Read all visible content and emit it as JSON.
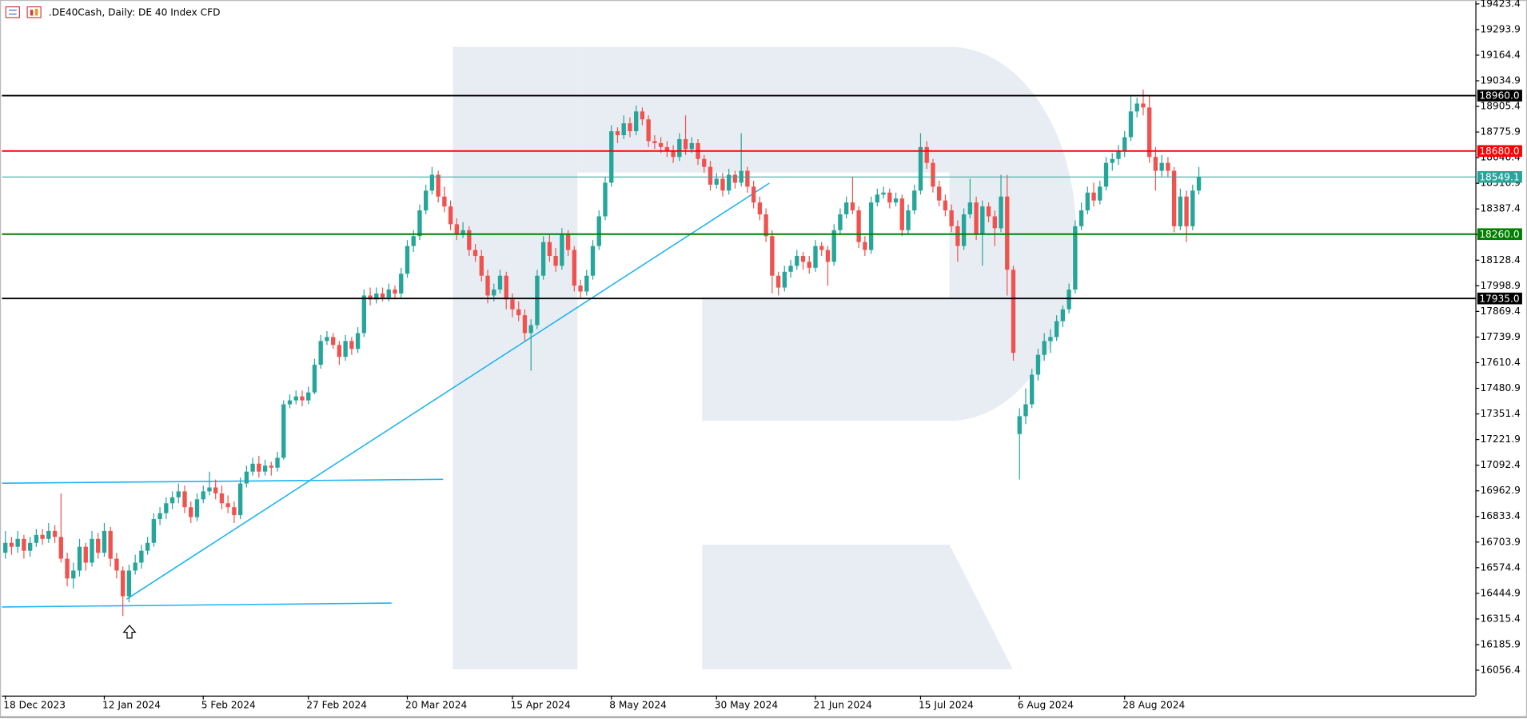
{
  "chart_data": {
    "type": "candlestick",
    "title": ".DE40Cash, Daily:  DE 40 Index CFD",
    "up_color": "#26a69a",
    "down_color": "#ef5350",
    "ylim": [
      15928.1,
      19443.1
    ],
    "yticks": [
      19423.4,
      19293.9,
      19164.4,
      19034.9,
      18905.4,
      18775.9,
      18646.4,
      18516.9,
      18387.4,
      18257.9,
      18128.4,
      17998.9,
      17869.4,
      17739.9,
      17610.4,
      17480.9,
      17351.4,
      17221.9,
      17092.4,
      16962.9,
      16833.4,
      16703.9,
      16574.4,
      16444.9,
      16315.4,
      16185.9,
      16056.4
    ],
    "levels": [
      {
        "value": 18960,
        "label": "18960.0",
        "color": "#000000"
      },
      {
        "value": 18680,
        "label": "18680.0",
        "color": "#ff0000"
      },
      {
        "value": 18549.1,
        "color": "#26a69a"
      },
      {
        "value": 18260,
        "label": "18260.0",
        "color": "#008000"
      },
      {
        "value": 17935,
        "label": "17935.0",
        "color": "#000000"
      }
    ],
    "categories": [
      "18 Dec 2023",
      null,
      null,
      null,
      null,
      null,
      null,
      null,
      null,
      null,
      null,
      null,
      null,
      null,
      null,
      null,
      "12 Jan 2024",
      null,
      null,
      null,
      null,
      null,
      null,
      null,
      null,
      null,
      null,
      null,
      null,
      null,
      null,
      null,
      "5 Feb 2024",
      null,
      null,
      null,
      null,
      null,
      null,
      null,
      null,
      null,
      null,
      null,
      null,
      null,
      null,
      null,
      null,
      "27 Feb 2024",
      null,
      null,
      null,
      null,
      null,
      null,
      null,
      null,
      null,
      null,
      null,
      null,
      null,
      null,
      null,
      "20 Mar 2024",
      null,
      null,
      null,
      null,
      null,
      null,
      null,
      null,
      null,
      null,
      null,
      null,
      null,
      null,
      null,
      null,
      "15 Apr 2024",
      null,
      null,
      null,
      null,
      null,
      null,
      null,
      null,
      null,
      null,
      null,
      null,
      null,
      null,
      null,
      "8 May 2024",
      null,
      null,
      null,
      null,
      null,
      null,
      null,
      null,
      null,
      null,
      null,
      null,
      null,
      null,
      null,
      null,
      "30 May 2024",
      null,
      null,
      null,
      null,
      null,
      null,
      null,
      null,
      null,
      null,
      null,
      null,
      null,
      null,
      null,
      "21 Jun 2024",
      null,
      null,
      null,
      null,
      null,
      null,
      null,
      null,
      null,
      null,
      null,
      null,
      null,
      null,
      null,
      null,
      "15 Jul 2024",
      null,
      null,
      null,
      null,
      null,
      null,
      null,
      null,
      null,
      null,
      null,
      null,
      null,
      null,
      null,
      "6 Aug 2024",
      null,
      null,
      null,
      null,
      null,
      null,
      null,
      null,
      null,
      null,
      null,
      null,
      null,
      null,
      null,
      null,
      "28 Aug 2024",
      null,
      null,
      null,
      null,
      null,
      null,
      null,
      null,
      null,
      null,
      null,
      null
    ],
    "ohlc": [
      [
        16650,
        16760,
        16620,
        16700
      ],
      [
        16700,
        16730,
        16640,
        16680
      ],
      [
        16680,
        16760,
        16650,
        16720
      ],
      [
        16720,
        16740,
        16620,
        16660
      ],
      [
        16660,
        16730,
        16630,
        16700
      ],
      [
        16700,
        16770,
        16680,
        16740
      ],
      [
        16740,
        16770,
        16690,
        16720
      ],
      [
        16720,
        16800,
        16700,
        16760
      ],
      [
        16760,
        16790,
        16700,
        16730
      ],
      [
        16730,
        16950,
        16600,
        16620
      ],
      [
        16620,
        16650,
        16480,
        16520
      ],
      [
        16520,
        16600,
        16470,
        16560
      ],
      [
        16560,
        16720,
        16530,
        16680
      ],
      [
        16680,
        16700,
        16560,
        16600
      ],
      [
        16600,
        16760,
        16580,
        16720
      ],
      [
        16720,
        16750,
        16620,
        16650
      ],
      [
        16650,
        16800,
        16630,
        16760
      ],
      [
        16760,
        16780,
        16580,
        16620
      ],
      [
        16620,
        16650,
        16520,
        16560
      ],
      [
        16560,
        16580,
        16330,
        16430
      ],
      [
        16430,
        16590,
        16400,
        16560
      ],
      [
        16560,
        16640,
        16540,
        16600
      ],
      [
        16600,
        16690,
        16570,
        16660
      ],
      [
        16660,
        16730,
        16640,
        16700
      ],
      [
        16700,
        16850,
        16680,
        16820
      ],
      [
        16820,
        16880,
        16790,
        16850
      ],
      [
        16850,
        16930,
        16820,
        16900
      ],
      [
        16900,
        16960,
        16870,
        16930
      ],
      [
        16930,
        17000,
        16900,
        16960
      ],
      [
        16960,
        16990,
        16850,
        16880
      ],
      [
        16880,
        16910,
        16800,
        16830
      ],
      [
        16830,
        16950,
        16810,
        16920
      ],
      [
        16920,
        16990,
        16900,
        16960
      ],
      [
        16960,
        17060,
        16940,
        16980
      ],
      [
        16980,
        17020,
        16920,
        16950
      ],
      [
        16950,
        16990,
        16870,
        16900
      ],
      [
        16900,
        16940,
        16850,
        16880
      ],
      [
        16880,
        16910,
        16800,
        16840
      ],
      [
        16840,
        17030,
        16820,
        17000
      ],
      [
        17000,
        17090,
        16980,
        17060
      ],
      [
        17060,
        17130,
        17040,
        17100
      ],
      [
        17100,
        17140,
        17030,
        17060
      ],
      [
        17060,
        17120,
        17040,
        17090
      ],
      [
        17090,
        17110,
        17040,
        17080
      ],
      [
        17080,
        17160,
        17060,
        17130
      ],
      [
        17130,
        17420,
        17120,
        17400
      ],
      [
        17400,
        17450,
        17380,
        17420
      ],
      [
        17420,
        17470,
        17400,
        17440
      ],
      [
        17440,
        17470,
        17390,
        17420
      ],
      [
        17420,
        17490,
        17400,
        17460
      ],
      [
        17460,
        17630,
        17450,
        17600
      ],
      [
        17600,
        17750,
        17580,
        17720
      ],
      [
        17720,
        17770,
        17700,
        17740
      ],
      [
        17740,
        17760,
        17680,
        17700
      ],
      [
        17700,
        17720,
        17600,
        17640
      ],
      [
        17640,
        17750,
        17620,
        17720
      ],
      [
        17720,
        17740,
        17650,
        17680
      ],
      [
        17680,
        17790,
        17660,
        17760
      ],
      [
        17760,
        17980,
        17740,
        17950
      ],
      [
        17950,
        17990,
        17900,
        17930
      ],
      [
        17930,
        17990,
        17910,
        17960
      ],
      [
        17960,
        17990,
        17920,
        17940
      ],
      [
        17940,
        18010,
        17920,
        17980
      ],
      [
        17980,
        18000,
        17930,
        17960
      ],
      [
        17960,
        18090,
        17940,
        18060
      ],
      [
        18060,
        18230,
        18040,
        18200
      ],
      [
        18200,
        18280,
        18170,
        18250
      ],
      [
        18250,
        18410,
        18230,
        18380
      ],
      [
        18380,
        18510,
        18360,
        18480
      ],
      [
        18480,
        18600,
        18460,
        18560
      ],
      [
        18560,
        18580,
        18420,
        18450
      ],
      [
        18450,
        18500,
        18370,
        18400
      ],
      [
        18400,
        18430,
        18280,
        18310
      ],
      [
        18310,
        18340,
        18230,
        18260
      ],
      [
        18260,
        18320,
        18240,
        18280
      ],
      [
        18280,
        18300,
        18150,
        18180
      ],
      [
        18180,
        18210,
        18120,
        18150
      ],
      [
        18150,
        18180,
        18020,
        18050
      ],
      [
        18050,
        18080,
        17910,
        17950
      ],
      [
        17950,
        18010,
        17920,
        17980
      ],
      [
        17980,
        18080,
        17960,
        18050
      ],
      [
        18050,
        18070,
        17880,
        17930
      ],
      [
        17930,
        17960,
        17840,
        17880
      ],
      [
        17880,
        17920,
        17820,
        17850
      ],
      [
        17850,
        17880,
        17720,
        17760
      ],
      [
        17760,
        17830,
        17570,
        17800
      ],
      [
        17800,
        18080,
        17780,
        18050
      ],
      [
        18050,
        18250,
        18030,
        18220
      ],
      [
        18220,
        18260,
        18120,
        18150
      ],
      [
        18150,
        18190,
        18070,
        18100
      ],
      [
        18100,
        18290,
        18080,
        18260
      ],
      [
        18260,
        18280,
        18150,
        18180
      ],
      [
        18180,
        18200,
        17970,
        18000
      ],
      [
        18000,
        18030,
        17940,
        17970
      ],
      [
        17970,
        18080,
        17950,
        18050
      ],
      [
        18050,
        18230,
        18030,
        18200
      ],
      [
        18200,
        18380,
        18180,
        18350
      ],
      [
        18350,
        18550,
        18330,
        18520
      ],
      [
        18520,
        18810,
        18500,
        18780
      ],
      [
        18780,
        18800,
        18720,
        18760
      ],
      [
        18760,
        18860,
        18740,
        18820
      ],
      [
        18820,
        18850,
        18750,
        18780
      ],
      [
        18780,
        18910,
        18760,
        18880
      ],
      [
        18880,
        18900,
        18810,
        18840
      ],
      [
        18840,
        18860,
        18700,
        18730
      ],
      [
        18730,
        18760,
        18690,
        18720
      ],
      [
        18720,
        18750,
        18670,
        18700
      ],
      [
        18700,
        18730,
        18650,
        18680
      ],
      [
        18680,
        18710,
        18620,
        18650
      ],
      [
        18650,
        18770,
        18630,
        18740
      ],
      [
        18740,
        18860,
        18660,
        18690
      ],
      [
        18690,
        18750,
        18670,
        18720
      ],
      [
        18720,
        18740,
        18610,
        18640
      ],
      [
        18640,
        18660,
        18570,
        18600
      ],
      [
        18600,
        18630,
        18480,
        18510
      ],
      [
        18510,
        18570,
        18490,
        18540
      ],
      [
        18540,
        18570,
        18450,
        18480
      ],
      [
        18480,
        18590,
        18460,
        18560
      ],
      [
        18560,
        18580,
        18490,
        18520
      ],
      [
        18520,
        18770,
        18500,
        18580
      ],
      [
        18580,
        18600,
        18470,
        18500
      ],
      [
        18500,
        18530,
        18390,
        18420
      ],
      [
        18420,
        18450,
        18330,
        18360
      ],
      [
        18360,
        18390,
        18220,
        18250
      ],
      [
        18250,
        18280,
        17960,
        18050
      ],
      [
        18050,
        18070,
        17950,
        17990
      ],
      [
        17990,
        18100,
        17970,
        18070
      ],
      [
        18070,
        18130,
        18040,
        18100
      ],
      [
        18100,
        18180,
        18080,
        18150
      ],
      [
        18150,
        18170,
        18080,
        18120
      ],
      [
        18120,
        18150,
        18060,
        18090
      ],
      [
        18090,
        18230,
        18070,
        18200
      ],
      [
        18200,
        18220,
        18150,
        18180
      ],
      [
        18180,
        18200,
        18000,
        18120
      ],
      [
        18120,
        18310,
        18100,
        18280
      ],
      [
        18280,
        18390,
        18260,
        18360
      ],
      [
        18360,
        18450,
        18340,
        18420
      ],
      [
        18420,
        18550,
        18360,
        18380
      ],
      [
        18380,
        18400,
        18190,
        18220
      ],
      [
        18220,
        18250,
        18150,
        18180
      ],
      [
        18180,
        18450,
        18160,
        18420
      ],
      [
        18420,
        18490,
        18400,
        18460
      ],
      [
        18460,
        18500,
        18440,
        18470
      ],
      [
        18470,
        18490,
        18390,
        18420
      ],
      [
        18420,
        18470,
        18400,
        18440
      ],
      [
        18440,
        18460,
        18250,
        18280
      ],
      [
        18280,
        18410,
        18260,
        18380
      ],
      [
        18380,
        18510,
        18360,
        18480
      ],
      [
        18480,
        18770,
        18460,
        18700
      ],
      [
        18700,
        18730,
        18590,
        18620
      ],
      [
        18620,
        18640,
        18470,
        18500
      ],
      [
        18500,
        18530,
        18400,
        18430
      ],
      [
        18430,
        18460,
        18350,
        18380
      ],
      [
        18380,
        18410,
        18270,
        18300
      ],
      [
        18300,
        18330,
        18120,
        18200
      ],
      [
        18200,
        18390,
        18180,
        18360
      ],
      [
        18360,
        18540,
        18340,
        18420
      ],
      [
        18420,
        18450,
        18230,
        18260
      ],
      [
        18260,
        18430,
        18100,
        18400
      ],
      [
        18400,
        18420,
        18320,
        18350
      ],
      [
        18350,
        18380,
        18200,
        18290
      ],
      [
        18290,
        18560,
        18270,
        18450
      ],
      [
        18450,
        18560,
        17950,
        18080
      ],
      [
        18080,
        18100,
        17620,
        17660
      ],
      [
        17250,
        17380,
        17020,
        17340
      ],
      [
        17340,
        17480,
        17300,
        17400
      ],
      [
        17400,
        17580,
        17380,
        17550
      ],
      [
        17550,
        17680,
        17520,
        17650
      ],
      [
        17650,
        17760,
        17620,
        17720
      ],
      [
        17720,
        17780,
        17660,
        17740
      ],
      [
        17740,
        17850,
        17720,
        17820
      ],
      [
        17820,
        17900,
        17790,
        17880
      ],
      [
        17880,
        18010,
        17860,
        17980
      ],
      [
        17980,
        18330,
        17960,
        18300
      ],
      [
        18300,
        18420,
        18280,
        18380
      ],
      [
        18380,
        18500,
        18360,
        18470
      ],
      [
        18470,
        18520,
        18400,
        18430
      ],
      [
        18430,
        18530,
        18410,
        18500
      ],
      [
        18500,
        18650,
        18480,
        18620
      ],
      [
        18620,
        18670,
        18580,
        18640
      ],
      [
        18640,
        18710,
        18610,
        18680
      ],
      [
        18680,
        18780,
        18650,
        18750
      ],
      [
        18750,
        18960,
        18730,
        18880
      ],
      [
        18880,
        18950,
        18850,
        18920
      ],
      [
        18920,
        18990,
        18860,
        18900
      ],
      [
        18900,
        18960,
        18620,
        18650
      ],
      [
        18650,
        18700,
        18480,
        18580
      ],
      [
        18580,
        18660,
        18550,
        18620
      ],
      [
        18620,
        18650,
        18550,
        18580
      ],
      [
        18580,
        18600,
        18270,
        18300
      ],
      [
        18300,
        18490,
        18280,
        18450
      ],
      [
        18450,
        18480,
        18220,
        18300
      ],
      [
        18300,
        18510,
        18280,
        18480
      ],
      [
        18480,
        18600,
        18460,
        18549.1
      ]
    ]
  }
}
